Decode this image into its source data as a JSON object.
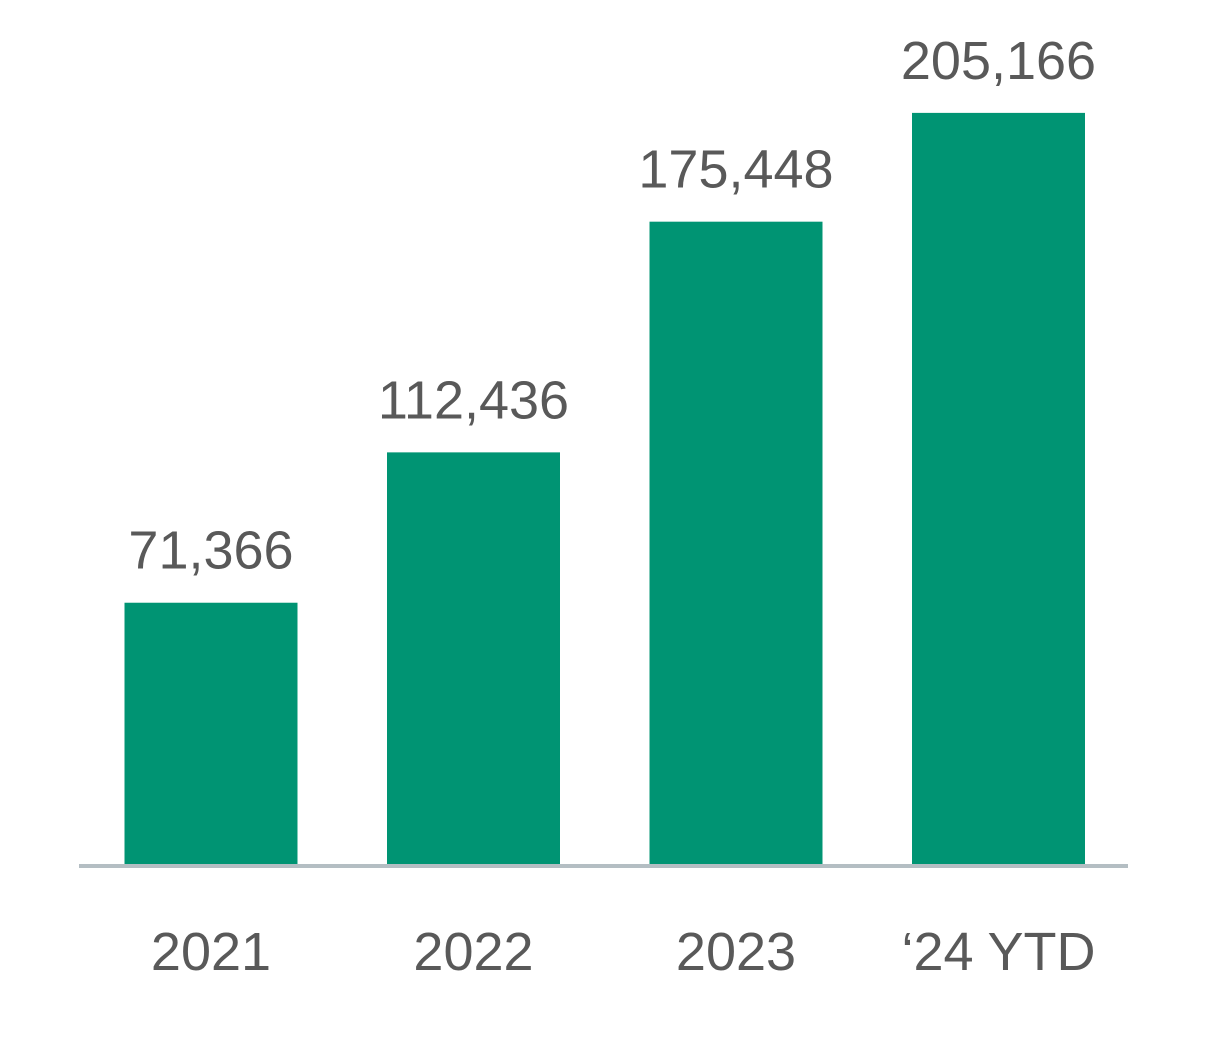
{
  "chart_data": {
    "type": "bar",
    "categories": [
      "2021",
      "2022",
      "2023",
      "‘24 YTD"
    ],
    "values": [
      71366,
      112436,
      175448,
      205166
    ],
    "data_labels": [
      "71,366",
      "112,436",
      "175,448",
      "205,166"
    ],
    "title": "",
    "xlabel": "",
    "ylabel": "",
    "ylim": [
      0,
      236000
    ],
    "grid": false,
    "legend": "none",
    "colors": {
      "bar": "#009473",
      "axis": "#b4bec3",
      "text": "#595959"
    }
  }
}
